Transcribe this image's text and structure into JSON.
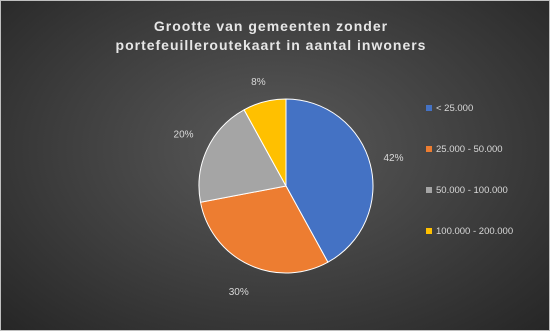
{
  "chart_data": {
    "type": "pie",
    "title": [
      "Grootte van gemeenten zonder",
      "portefeuilleroutekaart  in aantal inwoners"
    ],
    "categories": [
      "< 25.000",
      "25.000 - 50.000",
      "50.000 - 100.000",
      "100.000 - 200.000"
    ],
    "values": [
      42,
      30,
      20,
      8
    ],
    "labels": [
      "42%",
      "30%",
      "20%",
      "8%"
    ],
    "colors": [
      "#4472c4",
      "#ed7d31",
      "#a5a5a5",
      "#ffc000"
    ],
    "legend": "right"
  }
}
